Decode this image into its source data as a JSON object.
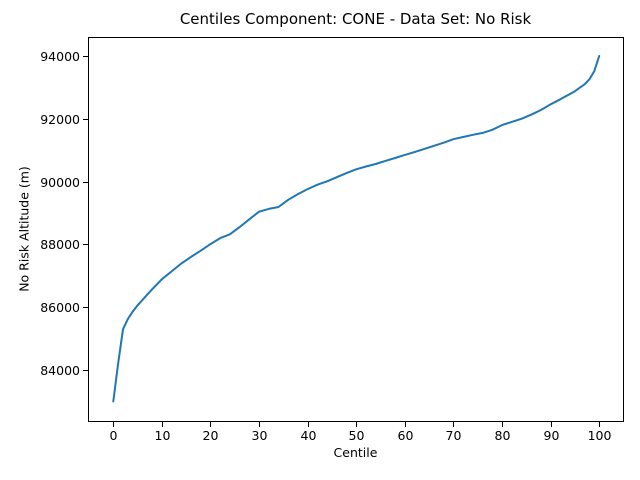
{
  "figure": {
    "background": "#ffffff",
    "text_color": "#000000",
    "spine_color": "#000000"
  },
  "chart_data": {
    "type": "line",
    "title": "Centiles Component: CONE - Data Set: No Risk",
    "xlabel": "Centile",
    "ylabel": "No Risk Altitude (m)",
    "xlim": [
      -5.2,
      104.9
    ],
    "ylim": [
      82375,
      94605
    ],
    "xticks": [
      0,
      10,
      20,
      30,
      40,
      50,
      60,
      70,
      80,
      90,
      100
    ],
    "yticks": [
      84000,
      86000,
      88000,
      90000,
      92000,
      94000
    ],
    "grid": false,
    "legend_position": "none",
    "line_color": "#1f77b4",
    "series": [
      {
        "name": "No Risk",
        "x": [
          0,
          1,
          2,
          3,
          4,
          5,
          6,
          7,
          8,
          9,
          10,
          12,
          14,
          16,
          18,
          20,
          22,
          24,
          26,
          28,
          30,
          32,
          34,
          36,
          38,
          40,
          42,
          44,
          46,
          48,
          50,
          52,
          54,
          56,
          58,
          60,
          62,
          64,
          66,
          68,
          70,
          72,
          74,
          76,
          78,
          80,
          82,
          84,
          86,
          88,
          90,
          92,
          94,
          95,
          96,
          97,
          98,
          99,
          100
        ],
        "y": [
          83000,
          84200,
          85300,
          85620,
          85860,
          86060,
          86230,
          86400,
          86570,
          86730,
          86890,
          87140,
          87390,
          87600,
          87800,
          88010,
          88200,
          88320,
          88550,
          88800,
          89040,
          89130,
          89190,
          89420,
          89600,
          89760,
          89900,
          90010,
          90140,
          90270,
          90390,
          90480,
          90560,
          90660,
          90750,
          90850,
          90940,
          91040,
          91140,
          91240,
          91350,
          91420,
          91490,
          91550,
          91650,
          91800,
          91900,
          92000,
          92130,
          92280,
          92460,
          92620,
          92790,
          92880,
          92990,
          93100,
          93260,
          93520,
          94000
        ]
      }
    ]
  }
}
